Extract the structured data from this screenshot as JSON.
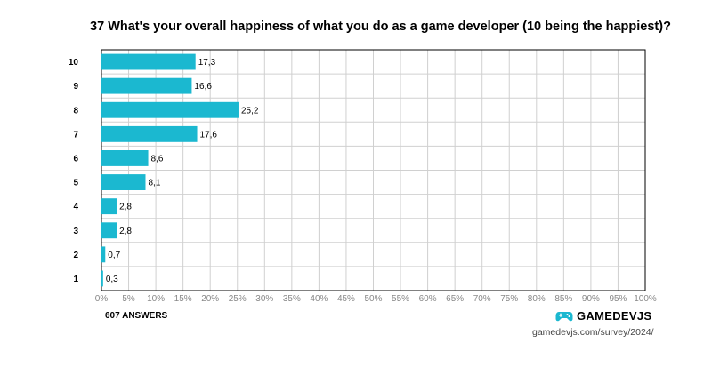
{
  "chart_data": {
    "type": "bar",
    "orientation": "horizontal",
    "title": "37 What's your overall happiness of what you do as a game developer (10 being the happiest)?",
    "categories": [
      "10",
      "9",
      "8",
      "7",
      "6",
      "5",
      "4",
      "3",
      "2",
      "1"
    ],
    "values": [
      17.3,
      16.6,
      25.2,
      17.6,
      8.6,
      8.1,
      2.8,
      2.8,
      0.7,
      0.3
    ],
    "value_labels": [
      "17,3",
      "16,6",
      "25,2",
      "17,6",
      "8,6",
      "8,1",
      "2,8",
      "2,8",
      "0,7",
      "0,3"
    ],
    "xlim": [
      0,
      100
    ],
    "x_ticks": [
      "0%",
      "5%",
      "10%",
      "15%",
      "20%",
      "25%",
      "30%",
      "35%",
      "40%",
      "45%",
      "50%",
      "55%",
      "60%",
      "65%",
      "70%",
      "75%",
      "80%",
      "85%",
      "90%",
      "95%",
      "100%"
    ],
    "bar_color": "#1bb8d0",
    "grid": true,
    "legend": "none"
  },
  "footer": {
    "answers": "607 ANSWERS",
    "brand": "GAMEDEVJS",
    "url": "gamedevjs.com/survey/2024/",
    "brand_icon": "gamepad-icon",
    "brand_color": "#1bb8d0"
  }
}
